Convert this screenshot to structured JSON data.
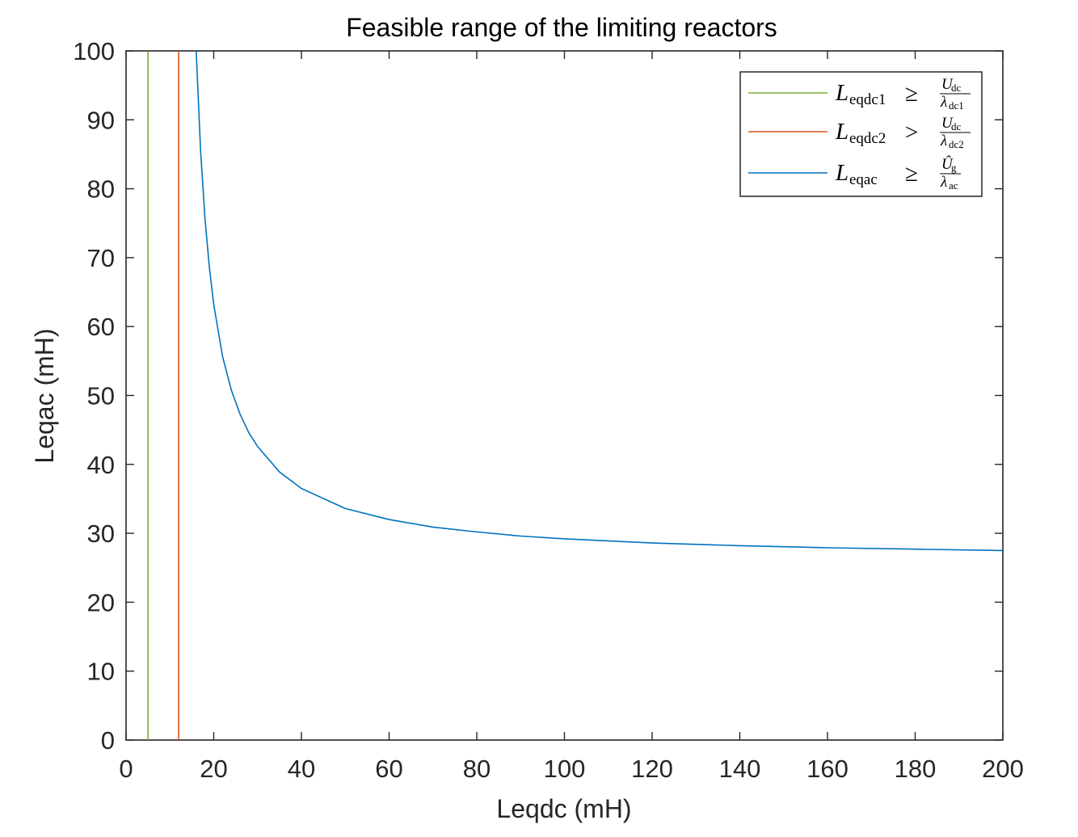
{
  "chart_data": {
    "type": "line",
    "title": "Feasible range of the limiting reactors",
    "xlabel": "Leqdc (mH)",
    "ylabel": "Leqac (mH)",
    "xlim": [
      0,
      200
    ],
    "ylim": [
      0,
      100
    ],
    "xticks": [
      "0",
      "20",
      "40",
      "60",
      "80",
      "100",
      "120",
      "140",
      "160",
      "180",
      "200"
    ],
    "yticks": [
      "0",
      "10",
      "20",
      "30",
      "40",
      "50",
      "60",
      "70",
      "80",
      "90",
      "100"
    ],
    "grid": false,
    "legend_position": "top-right",
    "series": [
      {
        "name": "L_eqdc1 ≥ U_dc / λ_dc1",
        "legend": {
          "main": "L",
          "sub": "eqdc1",
          "op": "≥",
          "num": "U",
          "num_sub": "dc",
          "den": "λ",
          "den_sub": "dc1"
        },
        "color": "#77AC30",
        "kind": "vertical",
        "x": [
          5,
          5
        ],
        "y": [
          0,
          100
        ]
      },
      {
        "name": "L_eqdc2 > U_dc / λ_dc2",
        "legend": {
          "main": "L",
          "sub": "eqdc2",
          "op": ">",
          "num": "U",
          "num_sub": "dc",
          "den": "λ",
          "den_sub": "dc2"
        },
        "color": "#D95319",
        "kind": "vertical",
        "x": [
          12,
          12
        ],
        "y": [
          0,
          100
        ]
      },
      {
        "name": "L_eqac ≥ Û_g / λ_ac",
        "legend": {
          "main": "L",
          "sub": "eqac",
          "op": "≥",
          "num": "Û",
          "num_sub": "g",
          "den": "λ",
          "den_sub": "ac"
        },
        "color": "#0072BD",
        "kind": "curve",
        "x": [
          16,
          17,
          18,
          19,
          20,
          22,
          24,
          26,
          28,
          30,
          35,
          40,
          50,
          60,
          70,
          80,
          90,
          100,
          120,
          140,
          160,
          180,
          200
        ],
        "y": [
          100,
          85.5,
          75.7,
          68.6,
          63.2,
          55.7,
          50.8,
          47.3,
          44.6,
          42.6,
          38.9,
          36.5,
          33.6,
          32.0,
          30.9,
          30.2,
          29.6,
          29.2,
          28.6,
          28.2,
          27.9,
          27.7,
          27.5
        ]
      }
    ]
  }
}
